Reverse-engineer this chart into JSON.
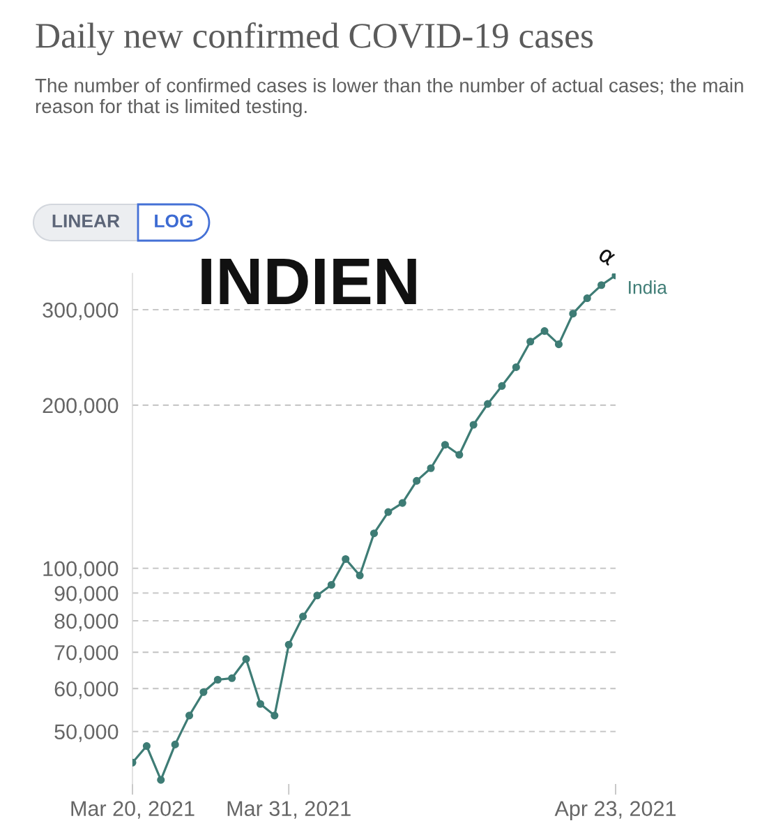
{
  "chart_data": {
    "type": "line",
    "title": "Daily new confirmed COVID-19 cases",
    "subtitle": "The number of confirmed cases is lower than the number of actual cases; the main reason for that is limited testing.",
    "annotations": [
      "LINEAR",
      "LOG",
      "INDIEN",
      "α"
    ],
    "x": [
      "2021-03-20",
      "2021-03-21",
      "2021-03-22",
      "2021-03-23",
      "2021-03-24",
      "2021-03-25",
      "2021-03-26",
      "2021-03-27",
      "2021-03-28",
      "2021-03-29",
      "2021-03-30",
      "2021-03-31",
      "2021-04-01",
      "2021-04-02",
      "2021-04-03",
      "2021-04-04",
      "2021-04-05",
      "2021-04-06",
      "2021-04-07",
      "2021-04-08",
      "2021-04-09",
      "2021-04-10",
      "2021-04-11",
      "2021-04-12",
      "2021-04-13",
      "2021-04-14",
      "2021-04-15",
      "2021-04-16",
      "2021-04-17",
      "2021-04-18",
      "2021-04-19",
      "2021-04-20",
      "2021-04-21",
      "2021-04-22",
      "2021-04-23"
    ],
    "series": [
      {
        "name": "India",
        "color": "#3e7c75",
        "values": [
          43800,
          47000,
          40700,
          47300,
          53500,
          59100,
          62300,
          62700,
          68000,
          56200,
          53500,
          72300,
          81500,
          89100,
          93200,
          104000,
          97000,
          116000,
          127000,
          132000,
          145000,
          153000,
          169000,
          162000,
          184000,
          201000,
          217000,
          235000,
          262000,
          274000,
          259000,
          295000,
          315000,
          333000,
          347000
        ]
      }
    ],
    "xlim": [
      "2021-03-20",
      "2021-04-23"
    ],
    "xticks": [
      {
        "value": "2021-03-20",
        "label": "Mar 20, 2021"
      },
      {
        "value": "2021-03-31",
        "label": "Mar 31, 2021"
      },
      {
        "value": "2021-04-23",
        "label": "Apr 23, 2021"
      }
    ],
    "ylim": [
      40000,
      350000
    ],
    "yticks": [
      {
        "value": 50000,
        "label": "50,000"
      },
      {
        "value": 60000,
        "label": "60,000"
      },
      {
        "value": 70000,
        "label": "70,000"
      },
      {
        "value": 80000,
        "label": "80,000"
      },
      {
        "value": 90000,
        "label": "90,000"
      },
      {
        "value": 100000,
        "label": "100,000"
      },
      {
        "value": 200000,
        "label": "200,000"
      },
      {
        "value": 300000,
        "label": "300,000"
      }
    ],
    "log": "y",
    "grid": "y",
    "marker": "circle",
    "line_style": "solid"
  }
}
